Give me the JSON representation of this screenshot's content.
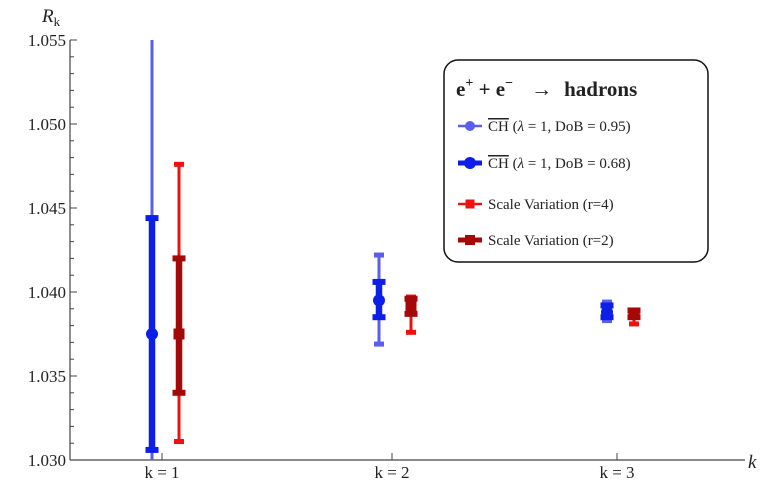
{
  "chart_data": {
    "type": "scatter",
    "title": "",
    "xlabel": "k",
    "ylabel": "R",
    "ylabel_sub": "k",
    "ylim": [
      1.03,
      1.055
    ],
    "yticks": [
      1.03,
      1.035,
      1.04,
      1.045,
      1.05,
      1.055
    ],
    "ytick_labels": [
      "1.030",
      "1.035",
      "1.040",
      "1.045",
      "1.050",
      "1.055"
    ],
    "categories": [
      "k = 1",
      "k = 2",
      "k = 3"
    ],
    "legend": {
      "placement": "top-right",
      "title": {
        "base": "e",
        "plus_sup": "+",
        "join": " + ",
        "base2": "e",
        "minus_sup": "−",
        "arrow": "→",
        "product": "hadrons"
      },
      "entries": [
        {
          "overline": "CH",
          "params_open": "(",
          "lambda": "λ",
          "params": " = 1,  DoB = 0.95)"
        },
        {
          "overline": "CH",
          "params_open": "(",
          "lambda": "λ",
          "params": " = 1,  DoB = 0.68)"
        },
        {
          "text": "Scale Variation (r=4)"
        },
        {
          "text": "Scale Variation (r=2)"
        }
      ]
    },
    "series": [
      {
        "key": "ch_95",
        "color": "#5a5ef0",
        "marker": "circle",
        "points": [
          {
            "k": 1,
            "center": 1.0375,
            "low": 1.03,
            "high": 1.055
          },
          {
            "k": 2,
            "center": 1.0395,
            "low": 1.0369,
            "high": 1.0422
          },
          {
            "k": 3,
            "center": 1.0388,
            "low": 1.0383,
            "high": 1.0394
          }
        ]
      },
      {
        "key": "ch_68",
        "color": "#0d1ee8",
        "marker": "circle",
        "points": [
          {
            "k": 1,
            "center": 1.0375,
            "low": 1.0306,
            "high": 1.0444
          },
          {
            "k": 2,
            "center": 1.0395,
            "low": 1.0385,
            "high": 1.0406
          },
          {
            "k": 3,
            "center": 1.0388,
            "low": 1.0385,
            "high": 1.0392
          }
        ]
      },
      {
        "key": "sv_r4",
        "color": "#ef1010",
        "marker": "square",
        "points": [
          {
            "k": 1,
            "center": 1.0375,
            "low": 1.0311,
            "high": 1.0476
          },
          {
            "k": 2,
            "center": 1.0392,
            "low": 1.0376,
            "high": 1.0397
          },
          {
            "k": 3,
            "center": 1.0387,
            "low": 1.0381,
            "high": 1.0389
          }
        ]
      },
      {
        "key": "sv_r2",
        "color": "#a50808",
        "marker": "square",
        "points": [
          {
            "k": 1,
            "center": 1.0375,
            "low": 1.034,
            "high": 1.042
          },
          {
            "k": 2,
            "center": 1.0392,
            "low": 1.0387,
            "high": 1.0396
          },
          {
            "k": 3,
            "center": 1.0387,
            "low": 1.0385,
            "high": 1.0389
          }
        ]
      }
    ]
  }
}
